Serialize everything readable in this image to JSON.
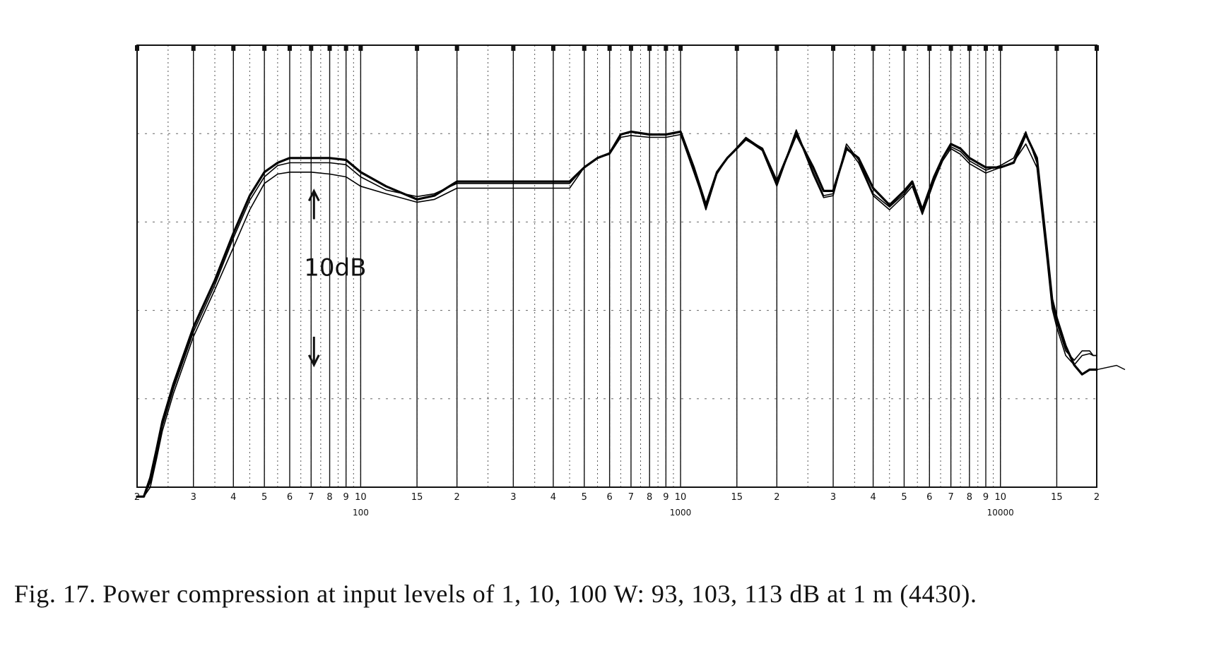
{
  "caption": "Fig. 17.  Power compression at input levels of 1, 10, 100 W: 93, 103, 113 dB at 1 m (4430).",
  "chart_data": {
    "type": "line",
    "x_scale": "log",
    "xlim": [
      20,
      20000
    ],
    "x_tick_values": [
      20,
      30,
      40,
      50,
      60,
      70,
      80,
      90,
      100,
      150,
      200,
      300,
      400,
      500,
      600,
      700,
      800,
      900,
      1000,
      1500,
      2000,
      3000,
      4000,
      5000,
      6000,
      7000,
      8000,
      9000,
      10000,
      15000,
      20000
    ],
    "x_tick_labels": [
      "2",
      "3",
      "4",
      "5",
      "6",
      "7",
      "8",
      "9",
      "10",
      "15",
      "2",
      "3",
      "4",
      "5",
      "6",
      "7",
      "8",
      "9",
      "10",
      "15",
      "2",
      "3",
      "4",
      "5",
      "6",
      "7",
      "8",
      "9",
      "10",
      "15",
      "2"
    ],
    "decade_labels": [
      {
        "value": 100,
        "label": "100"
      },
      {
        "value": 1000,
        "label": "1000"
      },
      {
        "value": 10000,
        "label": "10000"
      }
    ],
    "ylim": [
      -22,
      25
    ],
    "y_unit_label": "10dB",
    "y_scale_marker": {
      "from": 0,
      "to": 10
    },
    "grid": true,
    "series": [
      {
        "x": [
          20,
          21,
          22,
          23,
          24,
          26,
          30,
          35,
          40,
          45,
          50,
          55,
          60,
          70,
          80,
          90,
          100,
          120,
          150,
          170,
          200,
          300,
          400,
          450,
          500,
          550,
          600,
          650,
          700,
          800,
          900,
          1000,
          1100,
          1200,
          1300,
          1400,
          1600,
          1800,
          2000,
          2300,
          2600,
          2800,
          3000,
          3300,
          3600,
          4000,
          4500,
          5000,
          5300,
          5700,
          6200,
          6600,
          7000,
          7500,
          8000,
          9000,
          10000,
          11000,
          12000,
          13000,
          14000,
          14500,
          15000,
          16000,
          17000,
          18000,
          19000,
          19500,
          20000
        ],
        "y": [
          -23,
          -23,
          -21,
          -18,
          -15,
          -11,
          -5,
          0,
          5,
          9,
          11.5,
          12.5,
          13,
          13,
          13,
          12.8,
          11.5,
          10,
          8.6,
          9,
          10.5,
          10.5,
          10.5,
          10.5,
          12,
          13,
          13.5,
          15.5,
          15.8,
          15.5,
          15.5,
          15.8,
          12,
          8,
          11.5,
          13,
          15,
          14,
          10.5,
          15.5,
          12,
          9.5,
          9.5,
          14,
          13,
          9.8,
          8,
          9.5,
          10.5,
          7.5,
          11,
          13,
          14.5,
          14,
          13,
          12,
          12,
          12.5,
          15.5,
          13,
          3,
          -2,
          -4,
          -7,
          -9,
          -10,
          -9.5,
          -9.5,
          -9.5
        ]
      },
      {
        "x": [
          20,
          21,
          22,
          23,
          24,
          26,
          30,
          35,
          40,
          45,
          50,
          55,
          60,
          70,
          80,
          90,
          100,
          120,
          150,
          170,
          200,
          300,
          400,
          450,
          500,
          550,
          600,
          650,
          700,
          800,
          900,
          1000,
          1100,
          1200,
          1300,
          1400,
          1600,
          1800,
          2000,
          2300,
          2600,
          2800,
          3000,
          3300,
          3600,
          4000,
          4500,
          5000,
          5300,
          5700,
          6200,
          6600,
          7000,
          7500,
          8000,
          9000,
          10000,
          11000,
          12000,
          13000,
          14000,
          14500,
          15000,
          16000,
          17000,
          18000,
          19000,
          19500,
          20000
        ],
        "y": [
          -23,
          -23,
          -21.5,
          -18.5,
          -15.5,
          -11.5,
          -5.5,
          -0.5,
          4.5,
          8.5,
          11,
          12.2,
          12.5,
          12.5,
          12.5,
          12.3,
          11,
          9.6,
          8.9,
          9.2,
          10.3,
          10.3,
          10.3,
          10.3,
          12,
          13,
          13.5,
          15.5,
          15.8,
          15.5,
          15.5,
          15.8,
          11.8,
          7.5,
          11.3,
          13,
          15.2,
          14,
          10.2,
          16,
          11.5,
          9,
          9.2,
          14.5,
          12.8,
          9.2,
          7.8,
          9.2,
          10.3,
          7.2,
          10.8,
          13,
          14.2,
          13.7,
          12.7,
          11.7,
          12.2,
          13,
          15.8,
          12.5,
          2.5,
          -2.5,
          -4.5,
          -7.5,
          -8.5,
          -7.5,
          -7.5,
          -8,
          -8
        ]
      },
      {
        "x": [
          20,
          21,
          22,
          23,
          24,
          26,
          30,
          35,
          40,
          45,
          50,
          55,
          60,
          70,
          80,
          90,
          100,
          120,
          150,
          170,
          200,
          300,
          400,
          450,
          500,
          550,
          600,
          650,
          700,
          800,
          900,
          1000,
          1100,
          1200,
          1300,
          1400,
          1600,
          1800,
          2000,
          2300,
          2600,
          2800,
          3000,
          3300,
          3600,
          4000,
          4500,
          5000,
          5300,
          5700,
          6200,
          6600,
          7000,
          7500,
          8000,
          9000,
          10000,
          11000,
          12000,
          13000,
          14000,
          14500,
          15000,
          16000,
          17000,
          18000,
          19000,
          19500,
          20000
        ],
        "y": [
          -23,
          -23,
          -22,
          -19,
          -16,
          -12,
          -6,
          -1,
          3.5,
          7.5,
          10.3,
          11.3,
          11.5,
          11.5,
          11.3,
          11,
          10,
          9.2,
          8.3,
          8.6,
          9.8,
          9.8,
          9.8,
          9.8,
          12,
          13,
          13.4,
          15.2,
          15.4,
          15.2,
          15.2,
          15.5,
          11.5,
          7.8,
          11.5,
          13,
          15,
          13.8,
          10,
          15.8,
          11.2,
          8.8,
          9,
          14.2,
          12.5,
          9,
          7.5,
          9,
          10,
          7,
          10.5,
          12.7,
          14,
          13.4,
          12.4,
          11.4,
          12,
          12.6,
          14.5,
          12,
          2,
          -3,
          -5,
          -8,
          -9,
          -8,
          -7.8,
          -8,
          -8
        ]
      }
    ]
  }
}
